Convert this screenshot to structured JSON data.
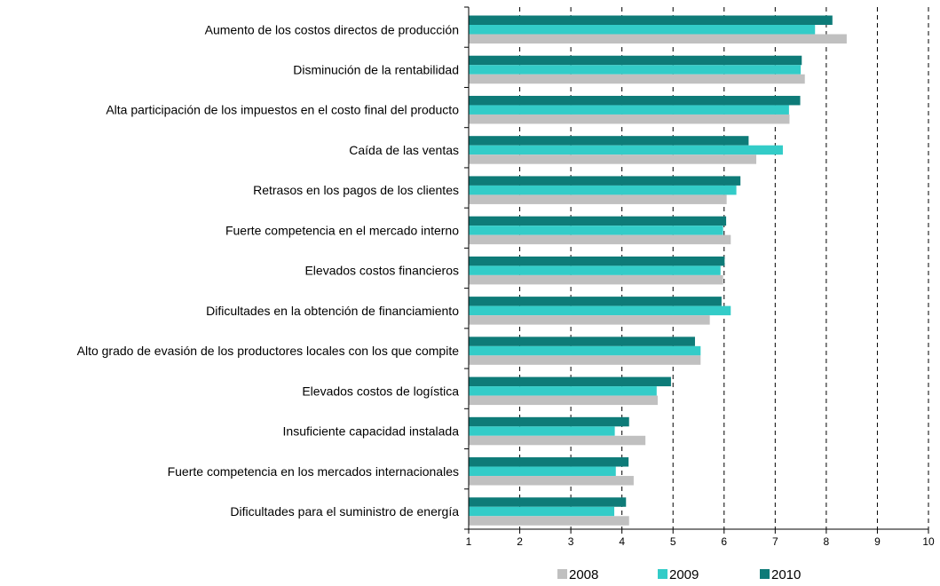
{
  "chart_data": {
    "type": "bar",
    "orientation": "horizontal",
    "title": "",
    "xlabel": "",
    "ylabel": "",
    "xlim": [
      1,
      10
    ],
    "x_ticks": [
      "1",
      "2",
      "3",
      "4",
      "5",
      "6",
      "7",
      "8",
      "9",
      "10"
    ],
    "grid": "vertical dashed",
    "legend_position": "bottom",
    "categories": [
      "Aumento de los costos directos de producción",
      "Disminución de la rentabilidad",
      "Alta participación de los impuestos en el costo final del producto",
      "Caída de las ventas",
      "Retrasos en los pagos de los clientes",
      "Fuerte competencia en el mercado interno",
      "Elevados costos financieros",
      "Dificultades en la obtención de financiamiento",
      "Alto grado de evasión de los productores locales con los que compite",
      "Elevados costos de logística",
      "Insuficiente capacidad instalada",
      "Fuerte competencia en los mercados internacionales",
      "Dificultades para el suministro de energía"
    ],
    "series": [
      {
        "name": "2010",
        "color": "#0e7b78",
        "values": [
          8.12,
          7.52,
          7.49,
          6.48,
          6.32,
          6.04,
          6.01,
          5.95,
          5.43,
          4.96,
          4.14,
          4.13,
          4.08
        ]
      },
      {
        "name": "2009",
        "color": "#33ccc8",
        "values": [
          7.78,
          7.5,
          7.27,
          7.15,
          6.24,
          5.98,
          5.93,
          6.13,
          5.54,
          4.68,
          3.86,
          3.88,
          3.85
        ]
      },
      {
        "name": "2008",
        "color": "#c0c0c0",
        "values": [
          8.4,
          7.58,
          7.28,
          6.63,
          6.05,
          6.13,
          5.98,
          5.72,
          5.54,
          4.7,
          4.46,
          4.23,
          4.14
        ]
      }
    ],
    "legend_order": [
      "2008",
      "2009",
      "2010"
    ]
  }
}
